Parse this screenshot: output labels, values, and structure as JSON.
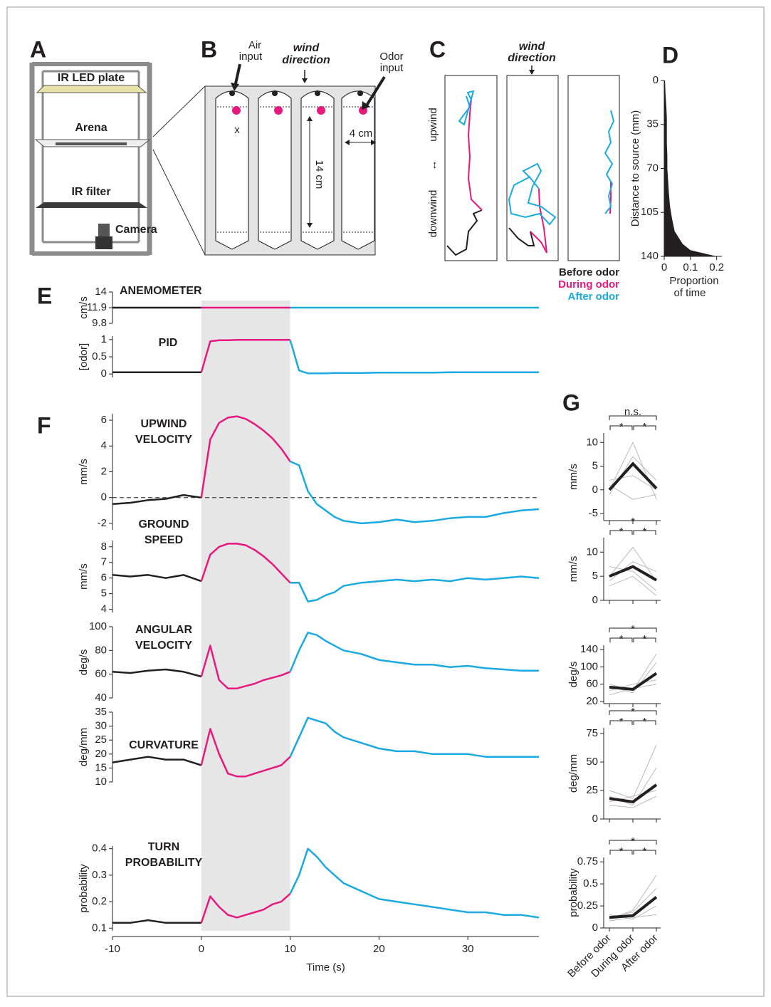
{
  "panel_labels": [
    "A",
    "B",
    "C",
    "D",
    "E",
    "F",
    "G"
  ],
  "diagram_a": {
    "led": "IR LED plate",
    "arena": "Arena",
    "filter": "IR filter",
    "camera": "Camera"
  },
  "diagram_b": {
    "air": [
      "Air",
      "input"
    ],
    "wind": [
      "wind",
      "direction"
    ],
    "odor": [
      "Odor",
      "input"
    ],
    "mark": "x",
    "width": "4 cm",
    "length": "14 cm"
  },
  "diagram_c": {
    "wind": [
      "wind",
      "direction"
    ],
    "upwind": "upwind",
    "arrow": "↔",
    "downwind": "downwind",
    "legend": [
      {
        "label": "Before odor",
        "color": "#231f20"
      },
      {
        "label": "During odor",
        "color": "#e6197f"
      },
      {
        "label": "After odor",
        "color": "#1ba9e1"
      }
    ]
  },
  "chart_data": [
    {
      "type": "area",
      "ylabel": "Distance to source (mm)",
      "xlabel": [
        "Proportion",
        "of time"
      ],
      "color": "#231f20",
      "y": [
        0,
        10,
        20,
        30,
        40,
        50,
        60,
        70,
        80,
        90,
        100,
        110,
        120,
        130,
        135,
        140
      ],
      "values": [
        0.003,
        0.005,
        0.008,
        0.01,
        0.01,
        0.01,
        0.012,
        0.012,
        0.015,
        0.018,
        0.022,
        0.03,
        0.04,
        0.07,
        0.1,
        0.2
      ],
      "xlim": [
        0,
        0.22
      ],
      "ylim": [
        0,
        140
      ],
      "xticks": [
        0,
        0.1,
        0.2
      ],
      "yticks": [
        0,
        35,
        70,
        105,
        140
      ]
    },
    {
      "type": "line",
      "title": [
        "ANEMOMETER"
      ],
      "ylabel": "cm/s",
      "xlim": [
        -10,
        38
      ],
      "ylim": [
        9.8,
        14
      ],
      "yticks": [
        9.8,
        11.9,
        14
      ],
      "series": [
        {
          "color": "#231f20",
          "x": [
            -10,
            -8,
            -6,
            -4,
            -2,
            0
          ],
          "values": [
            11.9,
            11.9,
            11.9,
            11.9,
            11.9,
            11.9
          ]
        },
        {
          "color": "#e6197f",
          "x": [
            0,
            1,
            2,
            3,
            4,
            5,
            6,
            7,
            8,
            9,
            10
          ],
          "values": [
            11.9,
            11.9,
            11.9,
            11.9,
            11.9,
            11.9,
            11.9,
            11.9,
            11.9,
            11.9,
            11.9
          ]
        },
        {
          "color": "#1ba9e1",
          "x": [
            10,
            11,
            12,
            13,
            14,
            15,
            16,
            18,
            20,
            22,
            24,
            26,
            28,
            30,
            32,
            34,
            36,
            38
          ],
          "values": [
            11.9,
            11.9,
            11.9,
            11.9,
            11.9,
            11.9,
            11.9,
            11.9,
            11.9,
            11.9,
            11.9,
            11.9,
            11.9,
            11.9,
            11.9,
            11.9,
            11.9,
            11.9
          ]
        }
      ]
    },
    {
      "type": "line",
      "title": [
        "PID"
      ],
      "ylabel": "[odor]",
      "xlim": [
        -10,
        38
      ],
      "ylim": [
        -0.1,
        1.1
      ],
      "yticks": [
        0,
        0.5,
        1
      ],
      "series": [
        {
          "color": "#231f20",
          "x": [
            -10,
            -8,
            -6,
            -4,
            -2,
            0
          ],
          "values": [
            0.05,
            0.05,
            0.05,
            0.05,
            0.05,
            0.05
          ]
        },
        {
          "color": "#e6197f",
          "x": [
            0,
            1,
            2,
            3,
            4,
            5,
            6,
            7,
            8,
            9,
            10
          ],
          "values": [
            0.05,
            0.95,
            0.98,
            0.98,
            0.99,
            0.99,
            0.99,
            0.99,
            0.99,
            0.99,
            0.99
          ]
        },
        {
          "color": "#1ba9e1",
          "x": [
            10,
            11,
            12,
            13,
            14,
            15,
            16,
            18,
            20,
            22,
            24,
            26,
            28,
            30,
            32,
            34,
            36,
            38
          ],
          "values": [
            0.99,
            0.1,
            0.02,
            0.02,
            0.02,
            0.03,
            0.03,
            0.03,
            0.04,
            0.04,
            0.04,
            0.04,
            0.05,
            0.05,
            0.05,
            0.05,
            0.05,
            0.05
          ]
        }
      ]
    },
    {
      "type": "line",
      "title": [
        "UPWIND",
        "VELOCITY"
      ],
      "ylabel": "mm/s",
      "xlim": [
        -10,
        38
      ],
      "ylim": [
        -2.5,
        6.5
      ],
      "yticks": [
        -2,
        0,
        2,
        4,
        6
      ],
      "zero_line": true,
      "series": [
        {
          "color": "#231f20",
          "x": [
            -10,
            -8,
            -6,
            -4,
            -2,
            0
          ],
          "values": [
            -0.5,
            -0.4,
            -0.2,
            -0.1,
            0.2,
            0
          ]
        },
        {
          "color": "#e6197f",
          "x": [
            0,
            1,
            2,
            3,
            4,
            5,
            6,
            7,
            8,
            9,
            10
          ],
          "values": [
            0,
            4.5,
            5.8,
            6.2,
            6.3,
            6.1,
            5.7,
            5.2,
            4.6,
            3.8,
            2.8
          ]
        },
        {
          "color": "#1ba9e1",
          "x": [
            10,
            11,
            12,
            13,
            14,
            15,
            16,
            18,
            20,
            22,
            24,
            26,
            28,
            30,
            32,
            34,
            36,
            38
          ],
          "values": [
            2.8,
            2.5,
            0.5,
            -0.5,
            -1,
            -1.5,
            -1.8,
            -2,
            -1.9,
            -1.7,
            -1.9,
            -1.8,
            -1.6,
            -1.5,
            -1.5,
            -1.2,
            -1,
            -0.9
          ]
        }
      ]
    },
    {
      "type": "line",
      "title": [
        "GROUND",
        "SPEED"
      ],
      "ylabel": "mm/s",
      "xlim": [
        -10,
        38
      ],
      "ylim": [
        3.8,
        8.4
      ],
      "yticks": [
        4,
        5,
        6,
        7,
        8
      ],
      "series": [
        {
          "color": "#231f20",
          "x": [
            -10,
            -8,
            -6,
            -4,
            -2,
            0
          ],
          "values": [
            6.2,
            6.1,
            6.2,
            6.0,
            6.2,
            5.8
          ]
        },
        {
          "color": "#e6197f",
          "x": [
            0,
            1,
            2,
            3,
            4,
            5,
            6,
            7,
            8,
            9,
            10
          ],
          "values": [
            5.8,
            7.5,
            8.0,
            8.2,
            8.2,
            8.1,
            7.8,
            7.4,
            6.9,
            6.3,
            5.7
          ]
        },
        {
          "color": "#1ba9e1",
          "x": [
            10,
            11,
            12,
            13,
            14,
            15,
            16,
            18,
            20,
            22,
            24,
            26,
            28,
            30,
            32,
            34,
            36,
            38
          ],
          "values": [
            5.7,
            5.7,
            4.5,
            4.6,
            4.9,
            5.1,
            5.5,
            5.7,
            5.8,
            5.9,
            5.8,
            5.9,
            5.8,
            6.0,
            5.9,
            6.0,
            6.1,
            6.0
          ]
        }
      ]
    },
    {
      "type": "line",
      "title": [
        "ANGULAR",
        "VELOCITY"
      ],
      "ylabel": "deg/s",
      "xlim": [
        -10,
        38
      ],
      "ylim": [
        40,
        100
      ],
      "yticks": [
        40,
        60,
        80,
        100
      ],
      "series": [
        {
          "color": "#231f20",
          "x": [
            -10,
            -8,
            -6,
            -4,
            -2,
            0
          ],
          "values": [
            62,
            61,
            63,
            64,
            62,
            58
          ]
        },
        {
          "color": "#e6197f",
          "x": [
            0,
            1,
            2,
            3,
            4,
            5,
            6,
            7,
            8,
            9,
            10
          ],
          "values": [
            58,
            84,
            55,
            48,
            48,
            50,
            52,
            55,
            57,
            59,
            62
          ]
        },
        {
          "color": "#1ba9e1",
          "x": [
            10,
            11,
            12,
            13,
            14,
            15,
            16,
            18,
            20,
            22,
            24,
            26,
            28,
            30,
            32,
            34,
            36,
            38
          ],
          "values": [
            62,
            80,
            95,
            93,
            88,
            84,
            80,
            77,
            72,
            70,
            68,
            68,
            66,
            67,
            65,
            64,
            63,
            63
          ]
        }
      ]
    },
    {
      "type": "line",
      "title": [
        "CURVATURE"
      ],
      "ylabel": "deg/mm",
      "xlim": [
        -10,
        38
      ],
      "ylim": [
        10,
        35
      ],
      "yticks": [
        10,
        15,
        20,
        25,
        30,
        35
      ],
      "series": [
        {
          "color": "#231f20",
          "x": [
            -10,
            -8,
            -6,
            -4,
            -2,
            0
          ],
          "values": [
            17,
            18,
            19,
            18,
            18,
            16
          ]
        },
        {
          "color": "#e6197f",
          "x": [
            0,
            1,
            2,
            3,
            4,
            5,
            6,
            7,
            8,
            9,
            10
          ],
          "values": [
            16,
            29,
            20,
            13,
            12,
            12,
            13,
            14,
            15,
            16,
            19
          ]
        },
        {
          "color": "#1ba9e1",
          "x": [
            10,
            11,
            12,
            13,
            14,
            15,
            16,
            18,
            20,
            22,
            24,
            26,
            28,
            30,
            32,
            34,
            36,
            38
          ],
          "values": [
            19,
            26,
            33,
            32,
            31,
            28,
            26,
            24,
            22,
            21,
            21,
            20,
            20,
            20,
            19,
            19,
            19,
            19
          ]
        }
      ]
    },
    {
      "type": "line",
      "title": [
        "TURN",
        "PROBABILITY"
      ],
      "ylabel": "probability",
      "xlabel": "Time (s)",
      "xlim": [
        -10,
        38
      ],
      "ylim": [
        0.09,
        0.41
      ],
      "yticks": [
        0.1,
        0.2,
        0.3,
        0.4
      ],
      "xticks": [
        -10,
        0,
        10,
        20,
        30
      ],
      "series": [
        {
          "color": "#231f20",
          "x": [
            -10,
            -8,
            -6,
            -4,
            -2,
            0
          ],
          "values": [
            0.12,
            0.12,
            0.13,
            0.12,
            0.12,
            0.12
          ]
        },
        {
          "color": "#e6197f",
          "x": [
            0,
            1,
            2,
            3,
            4,
            5,
            6,
            7,
            8,
            9,
            10
          ],
          "values": [
            0.12,
            0.22,
            0.18,
            0.15,
            0.14,
            0.15,
            0.16,
            0.17,
            0.19,
            0.2,
            0.23
          ]
        },
        {
          "color": "#1ba9e1",
          "x": [
            10,
            11,
            12,
            13,
            14,
            15,
            16,
            18,
            20,
            22,
            24,
            26,
            28,
            30,
            32,
            34,
            36,
            38
          ],
          "values": [
            0.23,
            0.3,
            0.4,
            0.37,
            0.33,
            0.3,
            0.27,
            0.24,
            0.21,
            0.2,
            0.19,
            0.18,
            0.17,
            0.16,
            0.16,
            0.15,
            0.15,
            0.14
          ]
        }
      ]
    },
    {
      "type": "slope",
      "ylabel": "mm/s",
      "ylim": [
        -6.5,
        12
      ],
      "yticks": [
        -5,
        0,
        5,
        10
      ],
      "annotations": [
        "*",
        "*",
        "n.s."
      ],
      "series": [
        {
          "color": "#bbbbbb",
          "values": [
            0,
            10,
            -2
          ]
        },
        {
          "color": "#bbbbbb",
          "values": [
            2,
            3,
            0
          ]
        },
        {
          "color": "#bbbbbb",
          "values": [
            -1,
            7,
            2
          ]
        },
        {
          "color": "#bbbbbb",
          "values": [
            1,
            -2,
            -1
          ]
        },
        {
          "color": "#231f20",
          "values": [
            0,
            5.5,
            0.3
          ]
        }
      ]
    },
    {
      "type": "slope",
      "ylabel": "mm/s",
      "ylim": [
        0,
        13
      ],
      "yticks": [
        0,
        5,
        10
      ],
      "annotations": [
        "*",
        "*",
        "*"
      ],
      "series": [
        {
          "color": "#bbbbbb",
          "values": [
            5,
            11,
            4
          ]
        },
        {
          "color": "#bbbbbb",
          "values": [
            7,
            6,
            2
          ]
        },
        {
          "color": "#bbbbbb",
          "values": [
            4,
            8,
            6
          ]
        },
        {
          "color": "#bbbbbb",
          "values": [
            3,
            5,
            1
          ]
        },
        {
          "color": "#231f20",
          "values": [
            5,
            7,
            4.2
          ]
        }
      ]
    },
    {
      "type": "slope",
      "ylabel": "deg/s",
      "ylim": [
        15,
        150
      ],
      "yticks": [
        20,
        60,
        100,
        140
      ],
      "annotations": [
        "*",
        "*",
        "*"
      ],
      "series": [
        {
          "color": "#bbbbbb",
          "values": [
            55,
            40,
            110
          ]
        },
        {
          "color": "#bbbbbb",
          "values": [
            45,
            60,
            70
          ]
        },
        {
          "color": "#bbbbbb",
          "values": [
            60,
            45,
            130
          ]
        },
        {
          "color": "#bbbbbb",
          "values": [
            35,
            50,
            60
          ]
        },
        {
          "color": "#231f20",
          "values": [
            53,
            48,
            85
          ]
        }
      ]
    },
    {
      "type": "slope",
      "ylabel": "deg/mm",
      "ylim": [
        0,
        80
      ],
      "yticks": [
        0,
        25,
        50,
        75
      ],
      "annotations": [
        "*",
        "*",
        "*"
      ],
      "series": [
        {
          "color": "#bbbbbb",
          "values": [
            20,
            12,
            45
          ]
        },
        {
          "color": "#bbbbbb",
          "values": [
            15,
            20,
            25
          ]
        },
        {
          "color": "#bbbbbb",
          "values": [
            25,
            18,
            65
          ]
        },
        {
          "color": "#bbbbbb",
          "values": [
            12,
            10,
            20
          ]
        },
        {
          "color": "#231f20",
          "values": [
            18,
            15,
            30
          ]
        }
      ]
    },
    {
      "type": "slope",
      "ylabel": "probability",
      "ylim": [
        0,
        0.8
      ],
      "yticks": [
        0,
        0.25,
        0.5,
        0.75
      ],
      "annotations": [
        "*",
        "*",
        "*"
      ],
      "categories": [
        "Before odor",
        "During odor",
        "After odor"
      ],
      "series": [
        {
          "color": "#bbbbbb",
          "values": [
            0.1,
            0.2,
            0.6
          ]
        },
        {
          "color": "#bbbbbb",
          "values": [
            0.15,
            0.1,
            0.25
          ]
        },
        {
          "color": "#bbbbbb",
          "values": [
            0.12,
            0.18,
            0.45
          ]
        },
        {
          "color": "#bbbbbb",
          "values": [
            0.08,
            0.12,
            0.15
          ]
        },
        {
          "color": "#231f20",
          "values": [
            0.12,
            0.14,
            0.35
          ]
        }
      ]
    }
  ]
}
